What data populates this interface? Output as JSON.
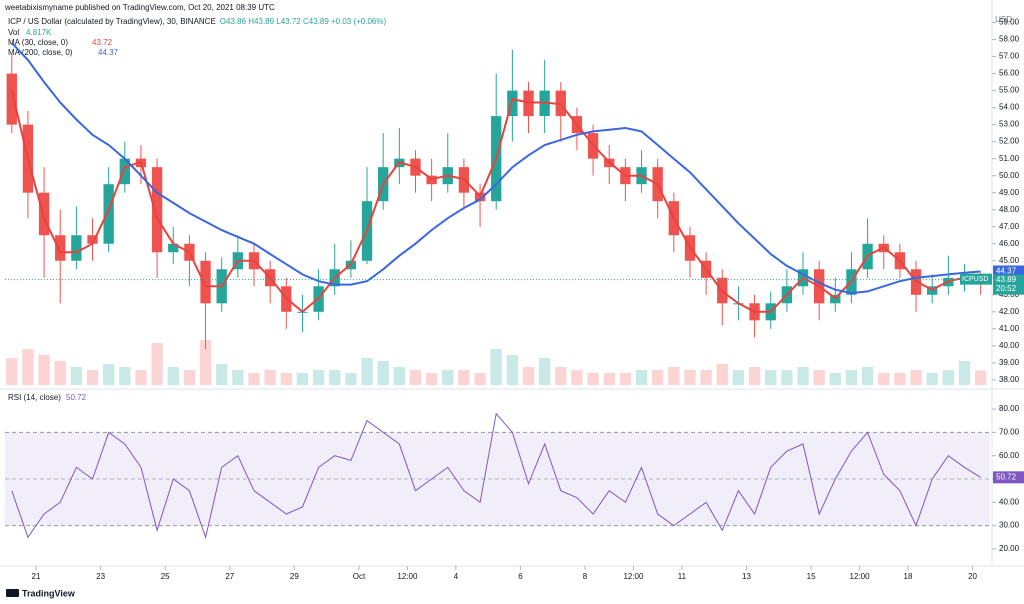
{
  "header": {
    "publisher": "weetabixismyname published on TradingView.com, Oct 20, 2021 08:39 UTC"
  },
  "chart_data": {
    "type": "candlestick",
    "title": "ICP / US Dollar (calculated by TradingView), 30, BINANCE",
    "ohlc_legend": "O43.86 H43.89 L43.72 C43.89 +0.03 (+0.06%)",
    "symbol": "ICPUSD",
    "currency": "USD",
    "last_price_label": "43.89",
    "countdown": "20:52",
    "up_color": "#26a69a",
    "down_color": "#ef5350",
    "grid": false,
    "x": [
      20.25,
      20.75,
      21.25,
      21.75,
      22.25,
      22.75,
      23.25,
      23.75,
      24.25,
      24.75,
      25.25,
      25.75,
      26.25,
      26.75,
      27.25,
      27.75,
      28.25,
      28.75,
      29.25,
      29.75,
      30.25,
      30.75,
      31.25,
      31.75,
      32.25,
      32.75,
      33.25,
      33.75,
      34.25,
      34.75,
      35.25,
      35.75,
      36.25,
      36.75,
      37.25,
      37.75,
      38.25,
      38.75,
      39.25,
      39.75,
      40.25,
      40.75,
      41.25,
      41.75,
      42.25,
      42.75,
      43.25,
      43.75,
      44.25,
      44.75,
      45.25,
      45.75,
      46.25,
      46.75,
      47.25,
      47.75,
      48.25,
      48.75,
      49.25,
      49.75,
      50.25
    ],
    "xlim": [
      20.04,
      50.54
    ],
    "xticks": [
      21,
      23,
      25,
      27,
      29,
      {
        "value": 31,
        "label": "Oct"
      },
      {
        "value": 32.5,
        "label": "12:00"
      },
      {
        "value": 34,
        "label": "4"
      },
      {
        "value": 36,
        "label": "6"
      },
      {
        "value": 38,
        "label": "8"
      },
      {
        "value": 39.5,
        "label": "12:00"
      },
      {
        "value": 41,
        "label": "11"
      },
      {
        "value": 43,
        "label": "13"
      },
      {
        "value": 45,
        "label": "15"
      },
      {
        "value": 46.5,
        "label": "12:00"
      },
      {
        "value": 48,
        "label": "18"
      },
      {
        "value": 50,
        "label": "20"
      }
    ],
    "open": [
      56,
      53,
      49,
      46.5,
      45,
      46.5,
      46,
      49.5,
      51,
      50.5,
      45.5,
      46,
      45,
      42.5,
      44.5,
      45.5,
      44.5,
      43.5,
      42,
      42,
      43.5,
      44.5,
      45,
      48.5,
      50.5,
      51,
      50,
      49.5,
      50.5,
      49,
      48.5,
      53.5,
      55,
      53.5,
      55,
      53.5,
      52.5,
      51,
      50.5,
      49.5,
      50.5,
      48.5,
      46.5,
      45,
      44,
      42.5,
      42.5,
      41.5,
      42.5,
      43.5,
      44.5,
      42.5,
      43,
      44.5,
      46,
      45.5,
      44.5,
      43,
      43.5,
      44,
      44
    ],
    "high": [
      57.2,
      53.8,
      50.5,
      48,
      48.2,
      47.5,
      50.5,
      52,
      51.8,
      51,
      47,
      46.5,
      45.5,
      45.2,
      46.5,
      46,
      45,
      44,
      43,
      44.5,
      46,
      46.2,
      50.5,
      52.5,
      52.8,
      51.5,
      51,
      52.5,
      51,
      49.5,
      56,
      57.4,
      55.5,
      56.8,
      55.5,
      54,
      53,
      51.8,
      51,
      51.5,
      51,
      49,
      47,
      45.5,
      44.5,
      43.5,
      43,
      43.2,
      44.5,
      45.5,
      45,
      44,
      45.5,
      47.5,
      46.5,
      46,
      45,
      44.2,
      45.3,
      44.8,
      44.3
    ],
    "low": [
      52.5,
      47.5,
      44,
      42.5,
      44.5,
      45,
      45.5,
      49,
      49.5,
      44,
      44.8,
      43.5,
      39.8,
      42,
      44,
      43.5,
      42.5,
      41,
      40.8,
      41.5,
      43,
      44,
      44.8,
      48,
      49.5,
      49,
      48.5,
      49,
      48,
      47,
      48,
      52,
      52.5,
      52.5,
      52,
      51.5,
      50,
      49.5,
      48.5,
      49,
      47.5,
      45.5,
      44,
      43,
      41.2,
      41.5,
      40.5,
      41,
      42,
      43,
      41.5,
      42,
      42.5,
      44,
      44.5,
      44,
      42,
      42.5,
      43,
      43.2,
      43
    ],
    "close": [
      53,
      49,
      46.5,
      45,
      46.5,
      46,
      49.5,
      51,
      50.5,
      45.5,
      46,
      45,
      42.5,
      44.5,
      45.5,
      44.5,
      43.5,
      42,
      42,
      43.5,
      44.5,
      45,
      48.5,
      50.5,
      51,
      50,
      49.5,
      50.5,
      49,
      48.5,
      53.5,
      55,
      53.5,
      55,
      53.5,
      52.5,
      51,
      50.5,
      49.5,
      50.5,
      48.5,
      46.5,
      45,
      44,
      42.5,
      42.5,
      41.5,
      42.5,
      43.5,
      44.5,
      42.5,
      43,
      44.5,
      46,
      45.5,
      44.5,
      43,
      43.5,
      44,
      44,
      43.89
    ],
    "ylim": [
      37.7,
      59.5
    ],
    "yticks": [
      {
        "value": 38,
        "label": "38.00"
      },
      {
        "value": 39,
        "label": "39.00"
      },
      {
        "value": 40,
        "label": "40.00"
      },
      {
        "value": 41,
        "label": "41.00"
      },
      {
        "value": 42,
        "label": "42.00"
      },
      {
        "value": 43,
        "label": "43.00"
      },
      {
        "value": 44,
        "label": "44.00"
      },
      {
        "value": 45,
        "label": "45.00"
      },
      {
        "value": 46,
        "label": "46.00"
      },
      {
        "value": 47,
        "label": "47.00"
      },
      {
        "value": 48,
        "label": "48.00"
      },
      {
        "value": 49,
        "label": "49.00"
      },
      {
        "value": 50,
        "label": "50.00"
      },
      {
        "value": 51,
        "label": "51.00"
      },
      {
        "value": 52,
        "label": "52.00"
      },
      {
        "value": 53,
        "label": "53.00"
      },
      {
        "value": 54,
        "label": "54.00"
      },
      {
        "value": 55,
        "label": "55.00"
      },
      {
        "value": 56,
        "label": "56.00"
      },
      {
        "value": 57,
        "label": "57.00"
      },
      {
        "value": 58,
        "label": "58.00"
      },
      {
        "value": 59,
        "label": "59.00"
      }
    ],
    "volume": {
      "name": "Vol",
      "legend_value": "4.817K",
      "values": [
        9,
        12,
        10,
        8,
        6,
        5,
        7,
        6,
        5,
        14,
        6,
        5,
        15,
        7,
        5,
        4,
        5,
        4,
        4,
        5,
        5,
        4,
        9,
        8,
        6,
        5,
        4,
        5,
        5,
        4,
        12,
        10,
        6,
        9,
        6,
        5,
        4,
        4,
        4,
        5,
        5,
        6,
        5,
        5,
        7,
        5,
        6,
        5,
        5,
        6,
        5,
        4,
        5,
        6,
        4,
        4,
        5,
        4,
        5,
        8,
        4.817
      ]
    },
    "overlays": [
      {
        "name": "MA (30, close, 0)",
        "color": "#e8433e",
        "last_label": "43.72",
        "values": [
          55,
          51,
          47.5,
          45.5,
          45.5,
          46,
          48,
          50.5,
          50.8,
          47.5,
          46,
          45.5,
          43.5,
          43.5,
          45,
          45,
          44,
          42.8,
          42,
          42.8,
          44,
          44.8,
          46.8,
          49.5,
          50.8,
          50.5,
          49.8,
          50,
          49.8,
          48.8,
          51,
          54.5,
          54.3,
          54.3,
          54.2,
          53,
          51.8,
          50.8,
          50,
          50,
          49.5,
          47.5,
          45.8,
          44.5,
          43.2,
          42.5,
          42,
          42,
          43,
          44,
          43.5,
          42.8,
          43.8,
          45.3,
          45.8,
          45,
          43.8,
          43.3,
          43.8,
          44,
          43.72
        ]
      },
      {
        "name": "MA (200, close, 0)",
        "color": "#3a67e0",
        "last_label": "44.37",
        "values": [
          57.8,
          56.8,
          55.5,
          54.3,
          53.3,
          52.4,
          51.8,
          51,
          50,
          49,
          48.4,
          47.8,
          47.3,
          46.8,
          46.4,
          46,
          45.4,
          44.8,
          44.2,
          43.8,
          43.6,
          43.6,
          43.8,
          44.5,
          45.3,
          46,
          46.8,
          47.5,
          48.1,
          48.6,
          49.5,
          50.5,
          51.2,
          51.8,
          52.1,
          52.4,
          52.6,
          52.7,
          52.8,
          52.6,
          51.8,
          51,
          50.2,
          49.2,
          48.2,
          47.2,
          46.3,
          45.4,
          44.7,
          44.2,
          43.7,
          43.3,
          43.1,
          43.2,
          43.5,
          43.8,
          44,
          44.1,
          44.2,
          44.3,
          44.37
        ]
      }
    ],
    "rsi": {
      "type": "line",
      "name": "RSI (14, close)",
      "color": "#7e57c2",
      "last_label": "50.72",
      "values": [
        45,
        25,
        35,
        40,
        55,
        50,
        70,
        65,
        55,
        28,
        50,
        45,
        25,
        55,
        60,
        45,
        40,
        35,
        38,
        55,
        60,
        58,
        75,
        70,
        65,
        45,
        50,
        55,
        45,
        40,
        78,
        70,
        48,
        65,
        45,
        42,
        35,
        45,
        40,
        55,
        35,
        30,
        35,
        40,
        28,
        45,
        35,
        55,
        62,
        65,
        35,
        50,
        62,
        70,
        52,
        45,
        30,
        50,
        60,
        55,
        50.72
      ],
      "ylim": [
        14.4,
        86.9
      ],
      "yticks": [
        {
          "value": 20,
          "label": "20.00"
        },
        {
          "value": 30,
          "label": "30.00"
        },
        {
          "value": 40,
          "label": "40.00"
        },
        {
          "value": 50,
          "label": "50.00"
        },
        {
          "value": 60,
          "label": "60.00"
        },
        {
          "value": 70,
          "label": "70.00"
        },
        {
          "value": 80,
          "label": "80.00"
        }
      ],
      "bands": [
        30,
        70
      ],
      "midline": 50
    }
  },
  "footer": {
    "brand": "TradingView"
  }
}
